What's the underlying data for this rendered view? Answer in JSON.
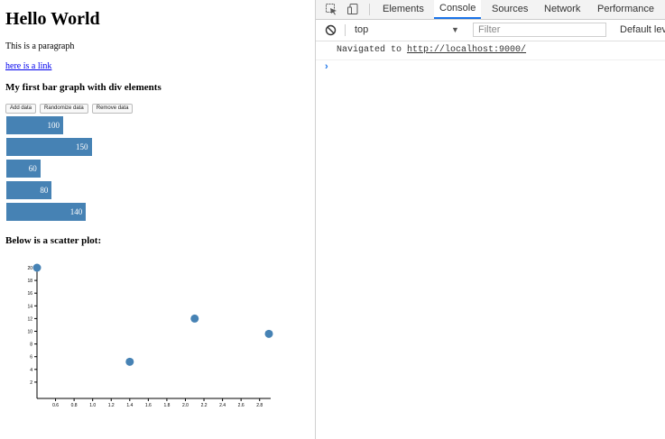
{
  "page": {
    "heading": "Hello World",
    "paragraph": "This is a paragraph",
    "link_text": "here is a link",
    "bar_heading": "My first bar graph with div elements",
    "buttons": {
      "add": "Add data",
      "randomize": "Randomize data",
      "remove": "Remove data"
    },
    "scatter_heading": "Below is a scatter plot:"
  },
  "chart_data": [
    {
      "type": "bar",
      "orientation": "horizontal",
      "values": [
        100,
        150,
        60,
        80,
        140
      ],
      "color": "#4682b4"
    },
    {
      "type": "scatter",
      "x": [
        0.4,
        1.4,
        2.1,
        2.9
      ],
      "y": [
        20,
        5.2,
        12,
        9.6
      ],
      "xlim": [
        0.4,
        2.9
      ],
      "ylim": [
        0,
        20
      ],
      "xticks": [
        "0.6",
        "0.8",
        "1.0",
        "1.2",
        "1.4",
        "1.6",
        "1.8",
        "2.0",
        "2.2",
        "2.4",
        "2.6",
        "2.8"
      ],
      "yticks": [
        "2",
        "4",
        "6",
        "8",
        "10",
        "12",
        "14",
        "16",
        "18",
        "20"
      ],
      "color": "#4682b4"
    }
  ],
  "devtools": {
    "tabs": [
      "Elements",
      "Console",
      "Sources",
      "Network",
      "Performance"
    ],
    "active_tab": "Console",
    "context": "top",
    "filter_placeholder": "Filter",
    "levels_label": "Default lev",
    "log": {
      "prefix": "Navigated to ",
      "url": "http://localhost:9000/"
    },
    "prompt_symbol": "›",
    "accent_color": "#1a73e8"
  }
}
